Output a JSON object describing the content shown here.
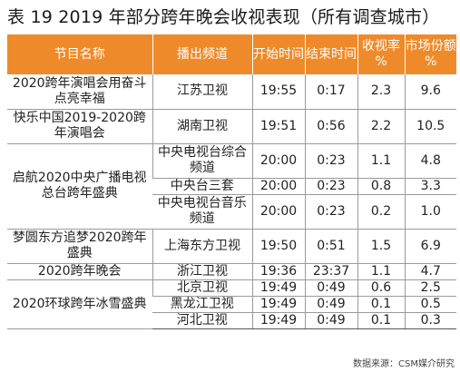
{
  "title": "表 19 2019 年部分跨年晚会收视表现（所有调查城市）",
  "headers": {
    "program": "节目名称",
    "channel": "播出频道",
    "start": "开始时间",
    "end": "结束时间",
    "rating": "收视率 %",
    "share": "市场份额 %"
  },
  "rows": [
    {
      "program": "2020跨年演唱会用奋斗点亮幸福",
      "channel": "江苏卫视",
      "start": "19:55",
      "end": "0:17",
      "rating": "2.3",
      "share": "9.6"
    },
    {
      "program": "快乐中国2019-2020跨年演唱会",
      "channel": "湖南卫视",
      "start": "19:51",
      "end": "0:56",
      "rating": "2.2",
      "share": "10.5"
    },
    {
      "program": "启航2020中央广播电视总台跨年盛典",
      "channel": "中央电视台综合频道",
      "start": "20:00",
      "end": "0:23",
      "rating": "1.1",
      "share": "4.8"
    },
    {
      "channel": "中央台三套",
      "start": "20:00",
      "end": "0:23",
      "rating": "0.8",
      "share": "3.3"
    },
    {
      "channel": "中央电视台音乐频道",
      "start": "20:00",
      "end": "0:23",
      "rating": "0.2",
      "share": "1.0"
    },
    {
      "program": "梦圆东方追梦2020跨年盛典",
      "channel": "上海东方卫视",
      "start": "19:50",
      "end": "0:51",
      "rating": "1.5",
      "share": "6.9"
    },
    {
      "program": "2020跨年晚会",
      "channel": "浙江卫视",
      "start": "19:36",
      "end": "23:37",
      "rating": "1.1",
      "share": "4.7"
    },
    {
      "program": "2020环球跨年冰雪盛典",
      "channel": "北京卫视",
      "start": "19:49",
      "end": "0:49",
      "rating": "0.6",
      "share": "2.5"
    },
    {
      "channel": "黑龙江卫视",
      "start": "19:49",
      "end": "0:49",
      "rating": "0.1",
      "share": "0.5"
    },
    {
      "channel": "河北卫视",
      "start": "19:49",
      "end": "0:49",
      "rating": "0.1",
      "share": "0.3"
    }
  ],
  "source": "数据来源：CSM媒介研究"
}
